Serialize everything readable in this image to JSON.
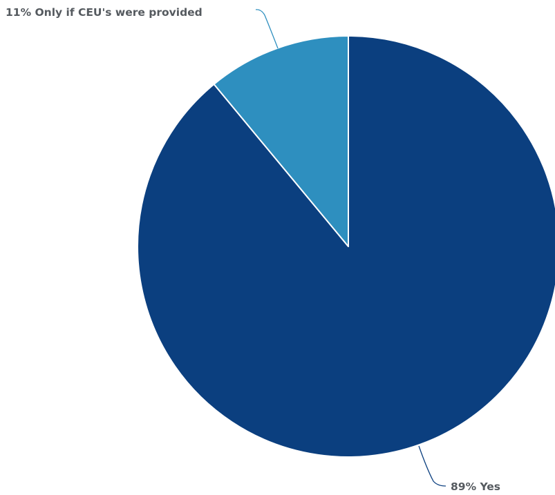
{
  "chart_data": {
    "type": "pie",
    "title": "",
    "slices": [
      {
        "label": "Yes",
        "value": 89,
        "display": "89% Yes",
        "color": "#0b3f7f"
      },
      {
        "label": "Only if CEU's were provided",
        "value": 11,
        "display": "11% Only if CEU's were provided",
        "color": "#2e8fbf"
      }
    ],
    "legend": "none"
  }
}
